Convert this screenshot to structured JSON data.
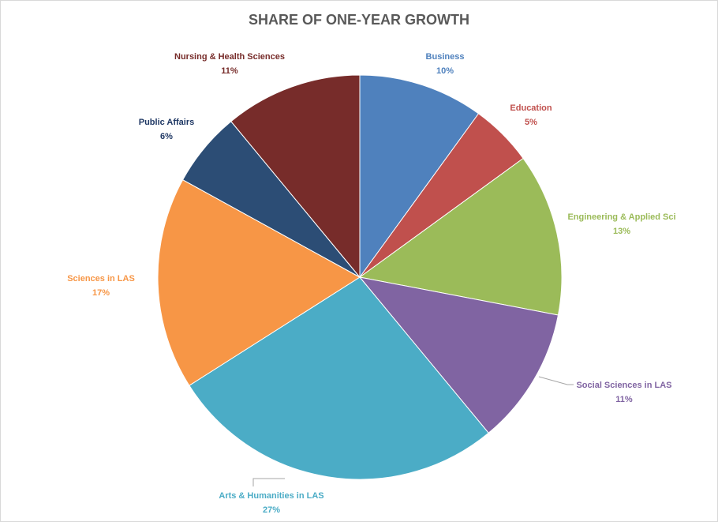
{
  "chart_data": {
    "type": "pie",
    "title": "SHARE OF ONE-YEAR GROWTH",
    "slices": [
      {
        "label": "Business",
        "value": 10,
        "percent_label": "10%",
        "color": "#4F81BD"
      },
      {
        "label": "Education",
        "value": 5,
        "percent_label": "5%",
        "color": "#C0504D"
      },
      {
        "label": "Engineering & Applied Sci",
        "value": 13,
        "percent_label": "13%",
        "color": "#9BBB59"
      },
      {
        "label": "Social Sciences in LAS",
        "value": 11,
        "percent_label": "11%",
        "color": "#8064A2"
      },
      {
        "label": "Arts & Humanities in LAS",
        "value": 27,
        "percent_label": "27%",
        "color": "#4BACC6"
      },
      {
        "label": "Sciences in LAS",
        "value": 17,
        "percent_label": "17%",
        "color": "#F79646"
      },
      {
        "label": "Public Affairs",
        "value": 6,
        "percent_label": "6%",
        "color": "#2C4D75"
      },
      {
        "label": "Nursing & Health Sciences",
        "value": 11,
        "percent_label": "11%",
        "color": "#772C2A"
      }
    ]
  }
}
